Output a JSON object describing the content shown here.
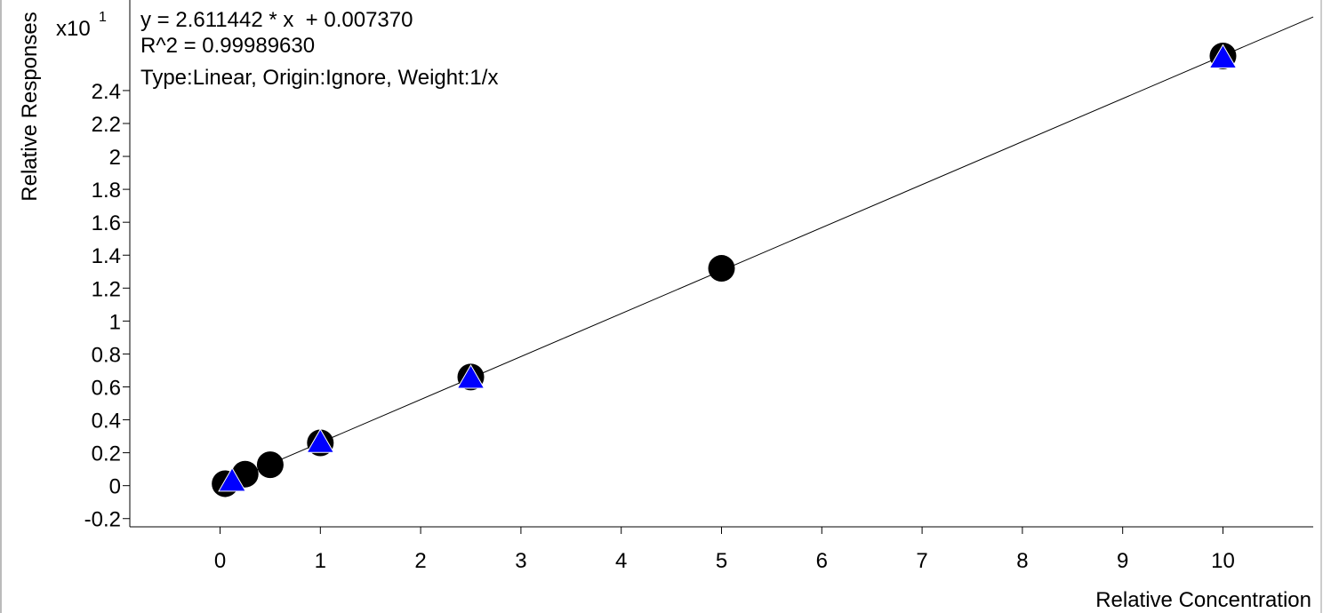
{
  "chart_data": {
    "type": "scatter",
    "equation": "y = 2.611442 * x  + 0.007370",
    "r_squared": "R^2 = 0.99989630",
    "fit_info": "Type:Linear, Origin:Ignore, Weight:1/x",
    "y_multiplier_base": "x10",
    "y_multiplier_exponent": "1",
    "ylabel": "Relative Responses",
    "xlabel": "Relative Concentration",
    "x_ticks": [
      "0",
      "1",
      "2",
      "3",
      "4",
      "5",
      "6",
      "7",
      "8",
      "9",
      "10"
    ],
    "y_ticks": [
      "-0.2",
      "0",
      "0.2",
      "0.4",
      "0.6",
      "0.8",
      "1",
      "1.2",
      "1.4",
      "1.6",
      "1.8",
      "2",
      "2.2",
      "2.4"
    ],
    "xlim": [
      -0.9,
      10.9
    ],
    "ylim": [
      -0.25,
      2.95
    ],
    "fit_line": {
      "slope": 0.2611442,
      "intercept": 0.000737
    },
    "series": [
      {
        "marker": "circle",
        "color": "#000000",
        "x": [
          0.05,
          0.25,
          0.5,
          1.0,
          2.5,
          5.0,
          10.0
        ],
        "y": [
          0.012,
          0.07,
          0.127,
          0.26,
          0.66,
          1.32,
          2.61
        ]
      },
      {
        "marker": "triangle",
        "color": "#0000ff",
        "x": [
          0.12,
          1.0,
          2.5,
          10.0
        ],
        "y": [
          0.03,
          0.265,
          0.655,
          2.6
        ]
      }
    ],
    "grid": false
  }
}
